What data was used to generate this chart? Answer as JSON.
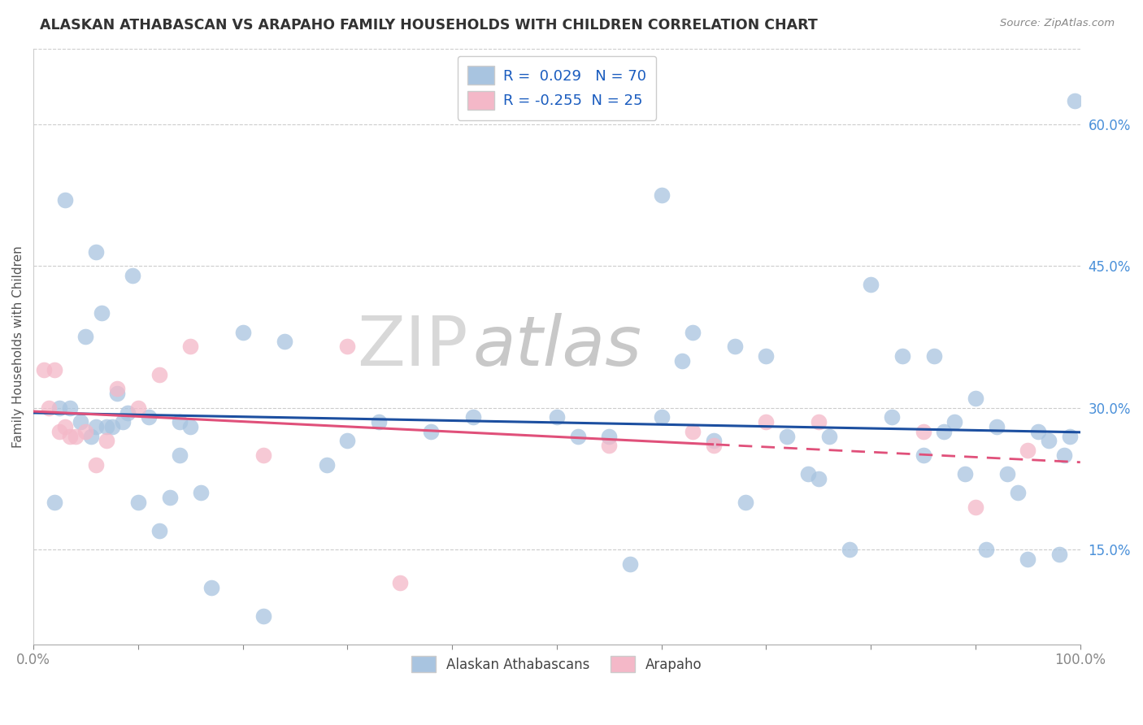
{
  "title": "ALASKAN ATHABASCAN VS ARAPAHO FAMILY HOUSEHOLDS WITH CHILDREN CORRELATION CHART",
  "source": "Source: ZipAtlas.com",
  "ylabel": "Family Households with Children",
  "legend_label1": "Alaskan Athabascans",
  "legend_label2": "Arapaho",
  "R1": 0.029,
  "N1": 70,
  "R2": -0.255,
  "N2": 25,
  "color1": "#a8c4e0",
  "color2": "#f4b8c8",
  "line_color1": "#1c4fa0",
  "line_color2": "#e0507a",
  "xlim": [
    0,
    100
  ],
  "ylim": [
    5,
    68
  ],
  "xticks": [
    0,
    10,
    20,
    30,
    40,
    50,
    60,
    70,
    80,
    90,
    100
  ],
  "ytick_vals": [
    15,
    30,
    45,
    60
  ],
  "background": "#ffffff",
  "scatter_blue_x": [
    2.0,
    2.5,
    3.5,
    4.5,
    5.0,
    5.5,
    6.0,
    6.5,
    7.0,
    7.5,
    8.0,
    8.5,
    9.0,
    10.0,
    11.0,
    12.0,
    13.0,
    14.0,
    15.0,
    16.0,
    17.0,
    20.0,
    24.0,
    28.0,
    30.0,
    33.0,
    38.0,
    42.0,
    50.0,
    52.0,
    55.0,
    57.0,
    60.0,
    62.0,
    63.0,
    65.0,
    67.0,
    68.0,
    70.0,
    72.0,
    74.0,
    75.0,
    76.0,
    78.0,
    80.0,
    82.0,
    83.0,
    85.0,
    86.0,
    87.0,
    88.0,
    89.0,
    90.0,
    91.0,
    92.0,
    93.0,
    94.0,
    95.0,
    96.0,
    97.0,
    98.0,
    98.5,
    99.0,
    99.5,
    3.0,
    6.0,
    9.5,
    14.0,
    22.0,
    60.0
  ],
  "scatter_blue_y": [
    20.0,
    30.0,
    30.0,
    28.5,
    37.5,
    27.0,
    28.0,
    40.0,
    28.0,
    28.0,
    31.5,
    28.5,
    29.5,
    20.0,
    29.0,
    17.0,
    20.5,
    25.0,
    28.0,
    21.0,
    11.0,
    38.0,
    37.0,
    24.0,
    26.5,
    28.5,
    27.5,
    29.0,
    29.0,
    27.0,
    27.0,
    13.5,
    29.0,
    35.0,
    38.0,
    26.5,
    36.5,
    20.0,
    35.5,
    27.0,
    23.0,
    22.5,
    27.0,
    15.0,
    43.0,
    29.0,
    35.5,
    25.0,
    35.5,
    27.5,
    28.5,
    23.0,
    31.0,
    15.0,
    28.0,
    23.0,
    21.0,
    14.0,
    27.5,
    26.5,
    14.5,
    25.0,
    27.0,
    62.5,
    52.0,
    46.5,
    44.0,
    28.5,
    8.0,
    52.5
  ],
  "scatter_pink_x": [
    1.0,
    1.5,
    2.0,
    2.5,
    3.0,
    3.5,
    4.0,
    5.0,
    6.0,
    7.0,
    8.0,
    10.0,
    12.0,
    15.0,
    22.0,
    30.0,
    35.0,
    55.0,
    63.0,
    65.0,
    70.0,
    75.0,
    85.0,
    90.0,
    95.0
  ],
  "scatter_pink_y": [
    34.0,
    30.0,
    34.0,
    27.5,
    28.0,
    27.0,
    27.0,
    27.5,
    24.0,
    26.5,
    32.0,
    30.0,
    33.5,
    36.5,
    25.0,
    36.5,
    11.5,
    26.0,
    27.5,
    26.0,
    28.5,
    28.5,
    27.5,
    19.5,
    25.5
  ]
}
